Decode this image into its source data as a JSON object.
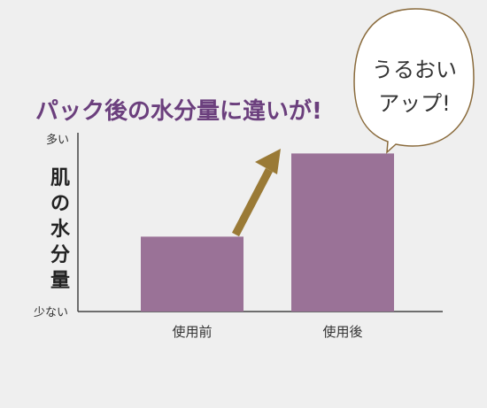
{
  "chart_data": {
    "type": "bar",
    "title": "パック後の水分量に違いが!",
    "ylabel": "肌の水分量",
    "ylabel_chars": [
      "肌",
      "の",
      "水",
      "分",
      "量"
    ],
    "ytick_high": "多い",
    "ytick_low": "少ない",
    "categories": [
      "使用前",
      "使用後"
    ],
    "values": [
      45,
      95
    ],
    "ylim": [
      0,
      100
    ],
    "callout_lines": [
      "うるおい",
      "アップ!"
    ],
    "arrow": "up-right",
    "colors": {
      "bar": "#9a7297",
      "title": "#6b3f7d",
      "arrow": "#9a7a36",
      "axis": "#444444",
      "callout_border": "#8a6b3c",
      "callout_fill": "#ffffff",
      "background": "#efefef"
    }
  }
}
